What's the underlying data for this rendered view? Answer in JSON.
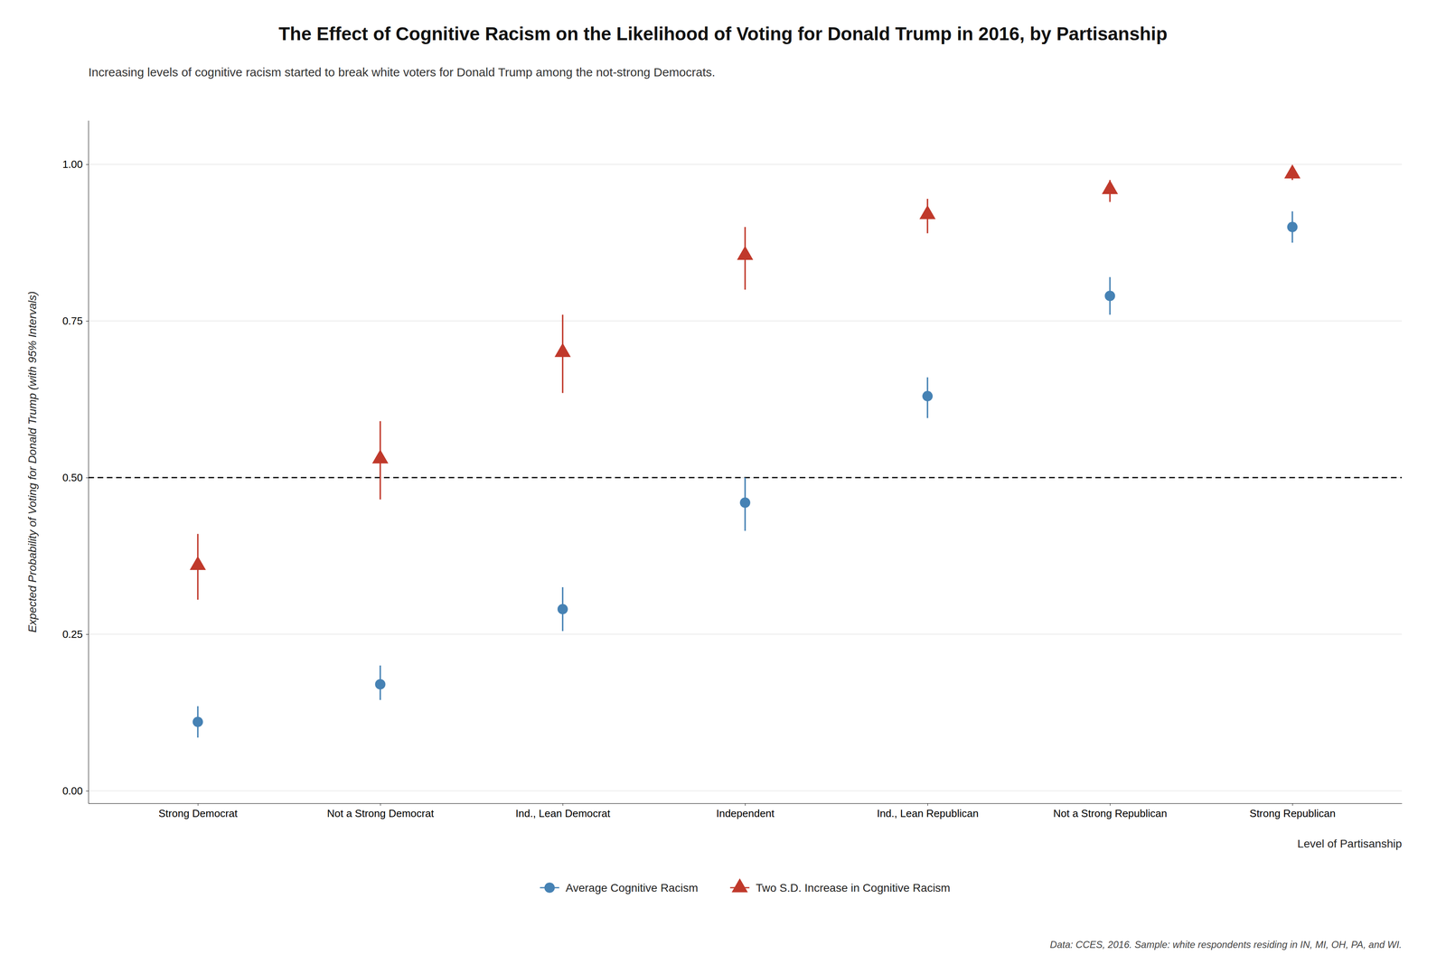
{
  "chart_data": {
    "type": "scatter",
    "title": "The Effect of Cognitive Racism on the Likelihood of Voting for Donald Trump in 2016, by Partisanship",
    "subtitle": "Increasing levels of cognitive racism started to break white voters for Donald Trump among the not-strong Democrats.",
    "x_label": "Level of Partisanship",
    "y_label": "Expected Probability of Voting for Donald Trump (with 95% Intervals)",
    "footnote": "Data: CCES, 2016. Sample: white respondents residing in IN, MI, OH, PA, and WI.",
    "categories": [
      "Strong Democrat",
      "Not a Strong Democrat",
      "Ind., Lean Democrat",
      "Independent",
      "Ind., Lean Republican",
      "Not a Strong Republican",
      "Strong Republican"
    ],
    "series": [
      {
        "name": "Average Cognitive Racism",
        "color": "#4682b4",
        "marker": "circle",
        "values": [
          0.11,
          0.17,
          0.29,
          0.46,
          0.63,
          0.79,
          0.9
        ],
        "lower": [
          0.085,
          0.145,
          0.255,
          0.415,
          0.595,
          0.76,
          0.875
        ],
        "upper": [
          0.135,
          0.2,
          0.325,
          0.5,
          0.66,
          0.82,
          0.925
        ]
      },
      {
        "name": "Two S.D. Increase in Cognitive Racism",
        "color": "#c0392b",
        "marker": "triangle",
        "values": [
          0.36,
          0.53,
          0.7,
          0.855,
          0.92,
          0.96,
          0.985
        ],
        "lower": [
          0.305,
          0.465,
          0.635,
          0.8,
          0.89,
          0.94,
          0.975
        ],
        "upper": [
          0.41,
          0.59,
          0.76,
          0.9,
          0.945,
          0.975,
          0.995
        ]
      }
    ],
    "reference_line": {
      "value": 0.5,
      "color": "#000000",
      "line_style": "dashed"
    },
    "ylim": [
      -0.02,
      1.07
    ],
    "yticks": [
      {
        "value": 0.0,
        "label": "0.00"
      },
      {
        "value": 0.25,
        "label": "0.25"
      },
      {
        "value": 0.5,
        "label": "0.50"
      },
      {
        "value": 0.75,
        "label": "0.75"
      },
      {
        "value": 1.0,
        "label": "1.00"
      }
    ],
    "grid": true,
    "legend": "bottom"
  }
}
